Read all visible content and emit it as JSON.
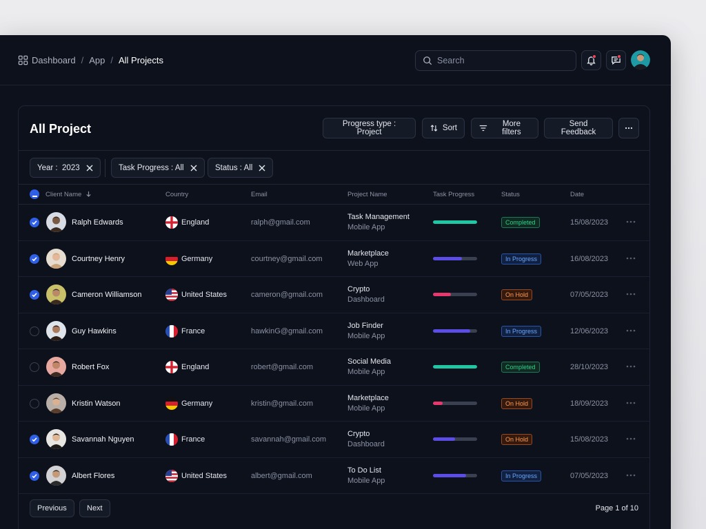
{
  "breadcrumb": [
    "Dashboard",
    "App",
    "All Projects"
  ],
  "search": {
    "placeholder": "Search",
    "value": ""
  },
  "card": {
    "title": "All Project",
    "buttons": {
      "progress_type": "Progress type : Project",
      "sort": "Sort",
      "more_filters": "More filters",
      "send_feedback": "Send Feedback"
    }
  },
  "filters": [
    {
      "label": "Year :",
      "value": "2023"
    },
    {
      "label": "Task Progress :",
      "value": "All"
    },
    {
      "label": "Status :",
      "value": "All"
    }
  ],
  "columns": [
    "Client Name",
    "Country",
    "Email",
    "Project Name",
    "Task Progress",
    "Status",
    "Date"
  ],
  "rows": [
    {
      "selected": true,
      "name": "Ralph Edwards",
      "country": "England",
      "flag": "england",
      "email": "ralph@gmail.com",
      "project": "Task Management",
      "project_sub": "Mobile App",
      "progress": 1.0,
      "progress_color": "#1fc7a5",
      "status": "Completed",
      "status_type": "completed",
      "date": "15/08/2023"
    },
    {
      "selected": true,
      "name": "Courtney Henry",
      "country": "Germany",
      "flag": "germany",
      "email": "courtney@gmail.com",
      "project": "Marketplace",
      "project_sub": "Web App",
      "progress": 0.65,
      "progress_color": "#5b4de6",
      "status": "In Progress",
      "status_type": "progress",
      "date": "16/08/2023"
    },
    {
      "selected": true,
      "name": "Cameron Williamson",
      "country": "United States",
      "flag": "usa",
      "email": "cameron@gmail.com",
      "project": "Crypto",
      "project_sub": "Dashboard",
      "progress": 0.4,
      "progress_color": "#e8386e",
      "status": "On Hold",
      "status_type": "hold",
      "date": "07/05/2023"
    },
    {
      "selected": false,
      "name": "Guy Hawkins",
      "country": "France",
      "flag": "france",
      "email": "hawkinG@gmail.com",
      "project": "Job Finder",
      "project_sub": "Mobile App",
      "progress": 0.85,
      "progress_color": "#5b4de6",
      "status": "In Progress",
      "status_type": "progress",
      "date": "12/06/2023"
    },
    {
      "selected": false,
      "name": "Robert Fox",
      "country": "England",
      "flag": "england",
      "email": "robert@gmail.com",
      "project": "Social Media",
      "project_sub": "Mobile App",
      "progress": 1.0,
      "progress_color": "#1fc7a5",
      "status": "Completed",
      "status_type": "completed",
      "date": "28/10/2023"
    },
    {
      "selected": false,
      "name": "Kristin Watson",
      "country": "Germany",
      "flag": "germany",
      "email": "kristin@gmail.com",
      "project": "Marketplace",
      "project_sub": "Mobile App",
      "progress": 0.22,
      "progress_color": "#e8386e",
      "status": "On Hold",
      "status_type": "hold",
      "date": "18/09/2023"
    },
    {
      "selected": true,
      "name": "Savannah Nguyen",
      "country": "France",
      "flag": "france",
      "email": "savannah@gmail.com",
      "project": "Crypto",
      "project_sub": "Dashboard",
      "progress": 0.5,
      "progress_color": "#5b4de6",
      "status": "On Hold",
      "status_type": "hold",
      "date": "15/08/2023"
    },
    {
      "selected": true,
      "name": "Albert Flores",
      "country": "United States",
      "flag": "usa",
      "email": "albert@gmail.com",
      "project": "To Do List",
      "project_sub": "Mobile App",
      "progress": 0.75,
      "progress_color": "#5b4de6",
      "status": "In Progress",
      "status_type": "progress",
      "date": "07/05/2023"
    }
  ],
  "pagination": {
    "previous": "Previous",
    "next": "Next",
    "page_info": "Page 1 of 10"
  },
  "icons": [
    "grid-icon",
    "search-icon",
    "bell-icon",
    "chat-icon",
    "sort-icon",
    "filter-icon",
    "more-icon",
    "close-icon",
    "arrow-down-icon"
  ],
  "colors": {
    "background": "#0d111c",
    "accent": "#2f5fe6",
    "completed": "#1fc7a5",
    "progress": "#5b4de6",
    "hold": "#e8386e"
  }
}
